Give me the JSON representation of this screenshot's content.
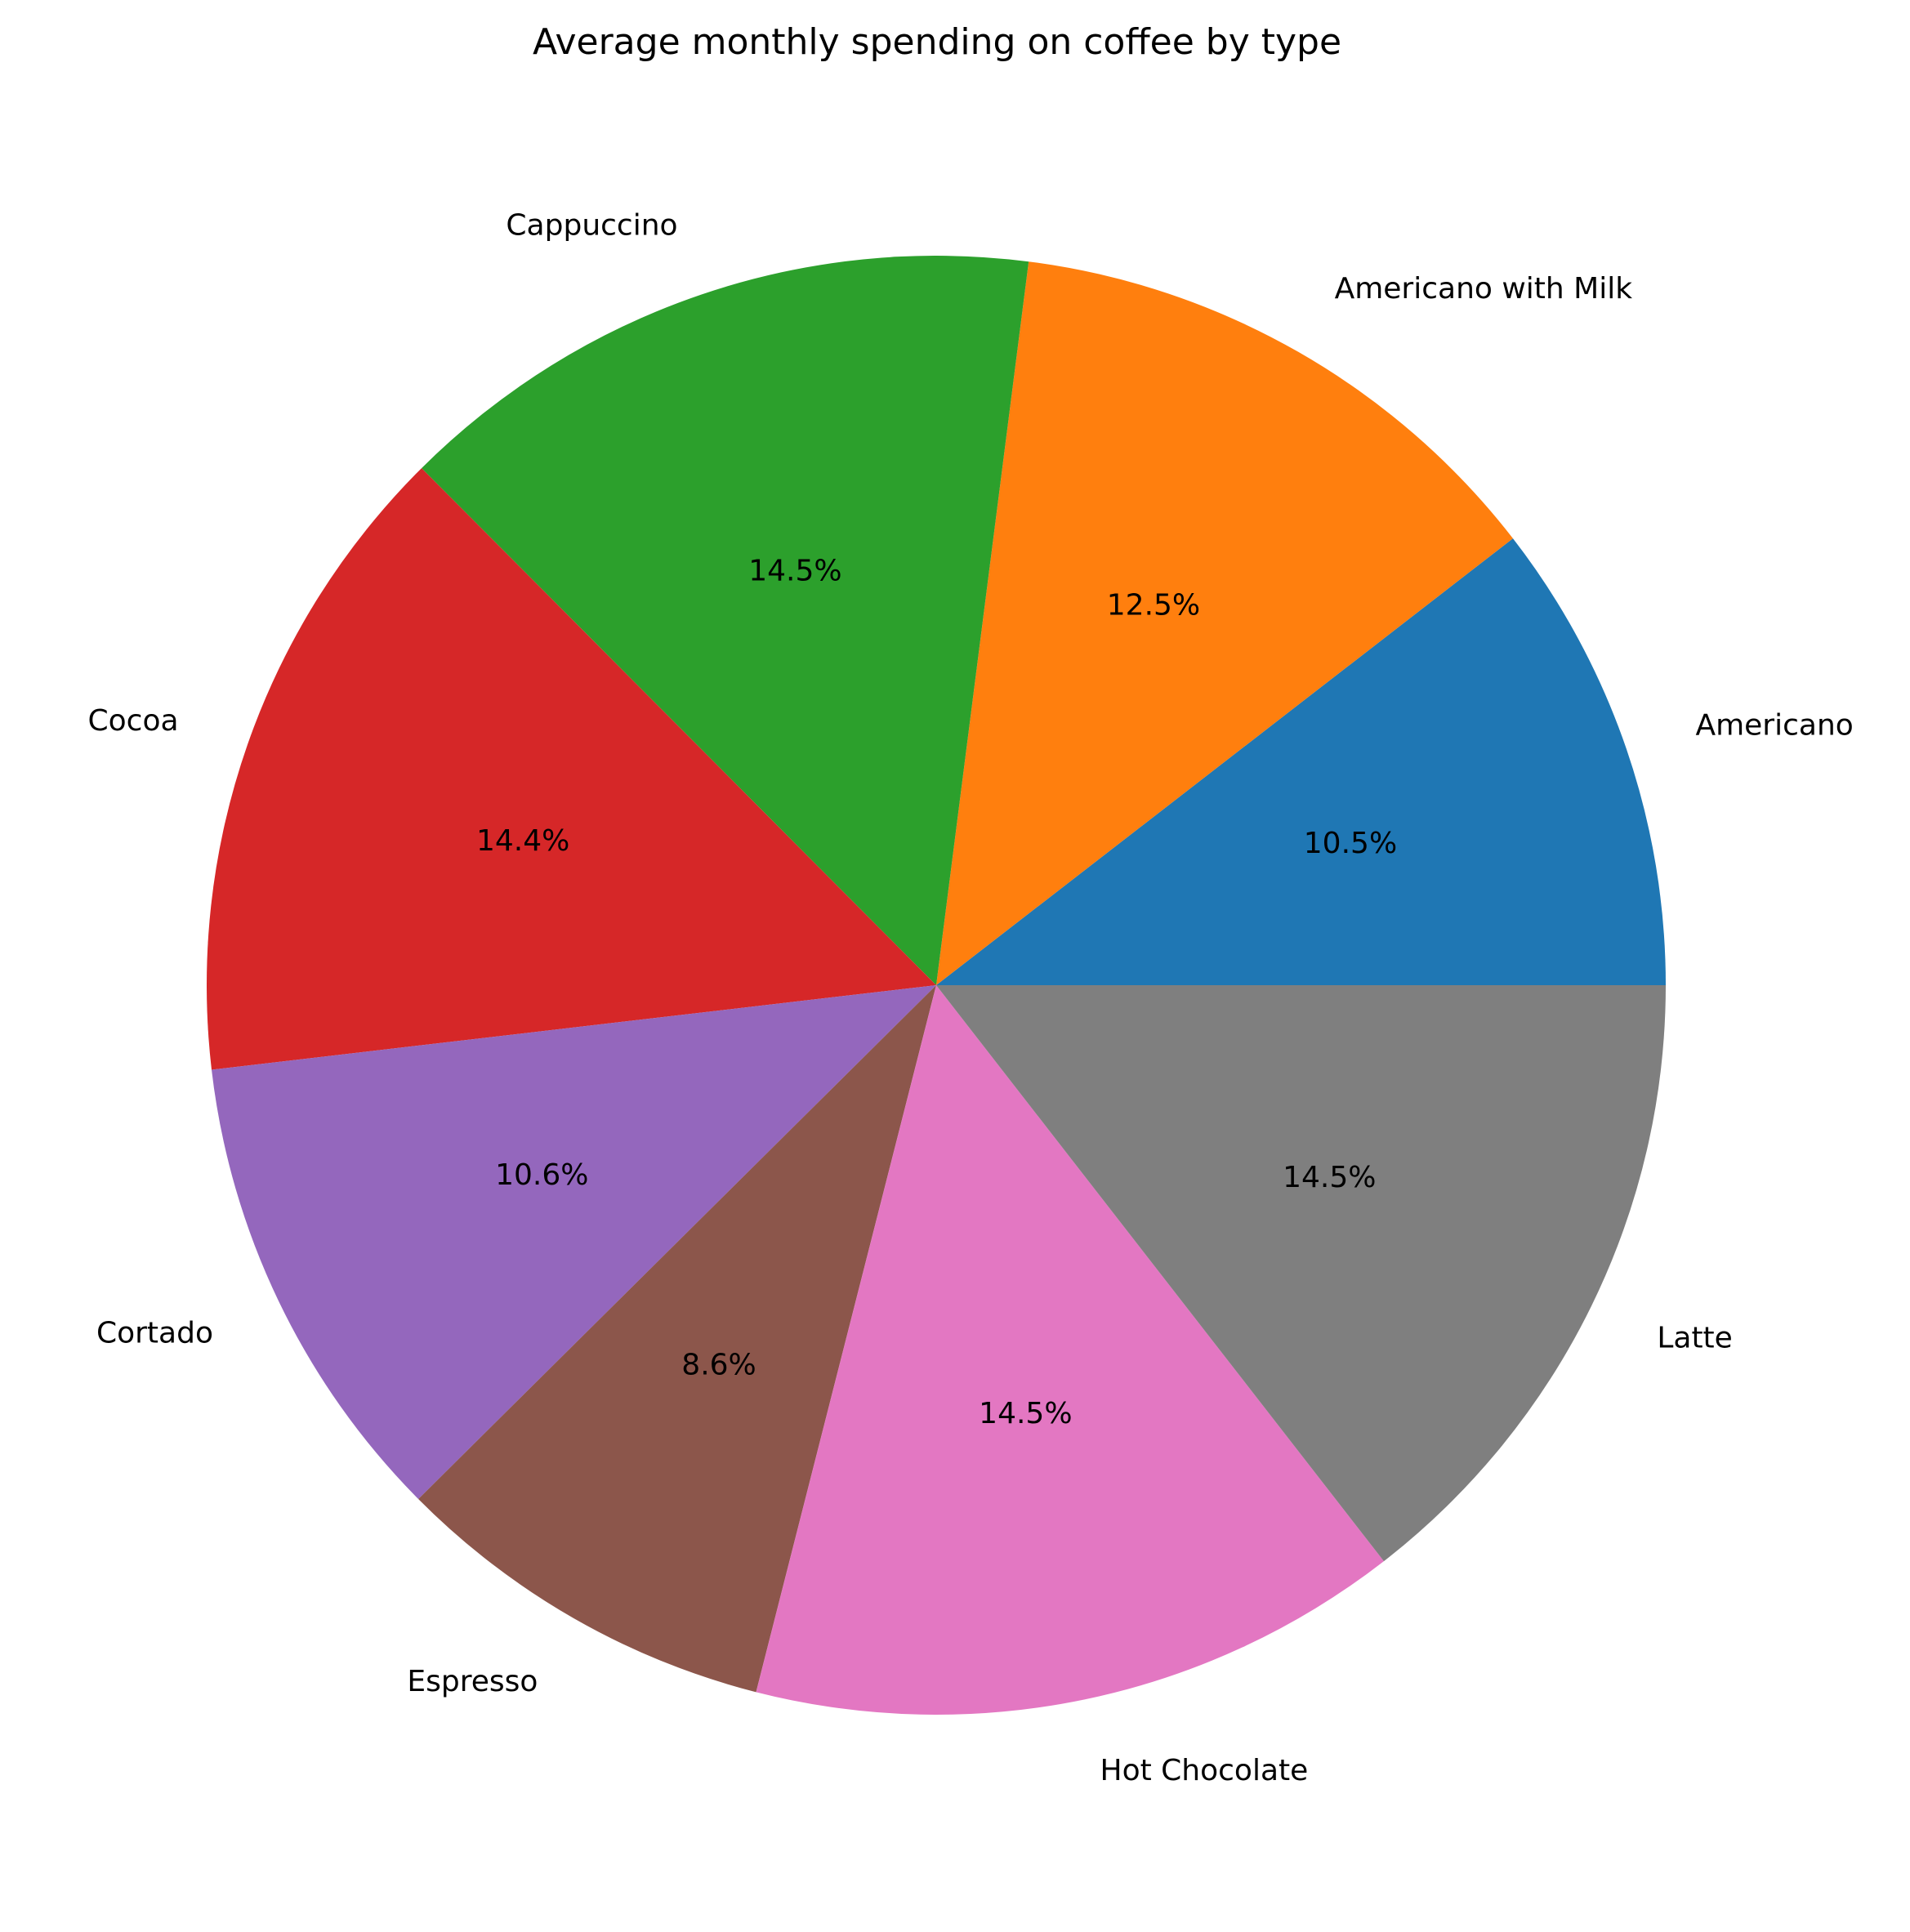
{
  "chart_data": {
    "type": "pie",
    "title": "Average monthly spending on coffee by type",
    "start_angle_deg": 0,
    "direction": "counterclockwise",
    "legend": "none",
    "slices": [
      {
        "label": "Americano",
        "percent": 10.5,
        "percent_label": "10.5%",
        "color": "#1f77b4"
      },
      {
        "label": "Americano with Milk",
        "percent": 12.5,
        "percent_label": "12.5%",
        "color": "#ff7f0e"
      },
      {
        "label": "Cappuccino",
        "percent": 14.5,
        "percent_label": "14.5%",
        "color": "#2ca02c"
      },
      {
        "label": "Cocoa",
        "percent": 14.4,
        "percent_label": "14.4%",
        "color": "#d62728"
      },
      {
        "label": "Cortado",
        "percent": 10.6,
        "percent_label": "10.6%",
        "color": "#9467bd"
      },
      {
        "label": "Espresso",
        "percent": 8.6,
        "percent_label": "8.6%",
        "color": "#8c564b"
      },
      {
        "label": "Hot Chocolate",
        "percent": 14.5,
        "percent_label": "14.5%",
        "color": "#e377c2"
      },
      {
        "label": "Latte",
        "percent": 14.5,
        "percent_label": "14.5%",
        "color": "#7f7f7f"
      }
    ]
  }
}
